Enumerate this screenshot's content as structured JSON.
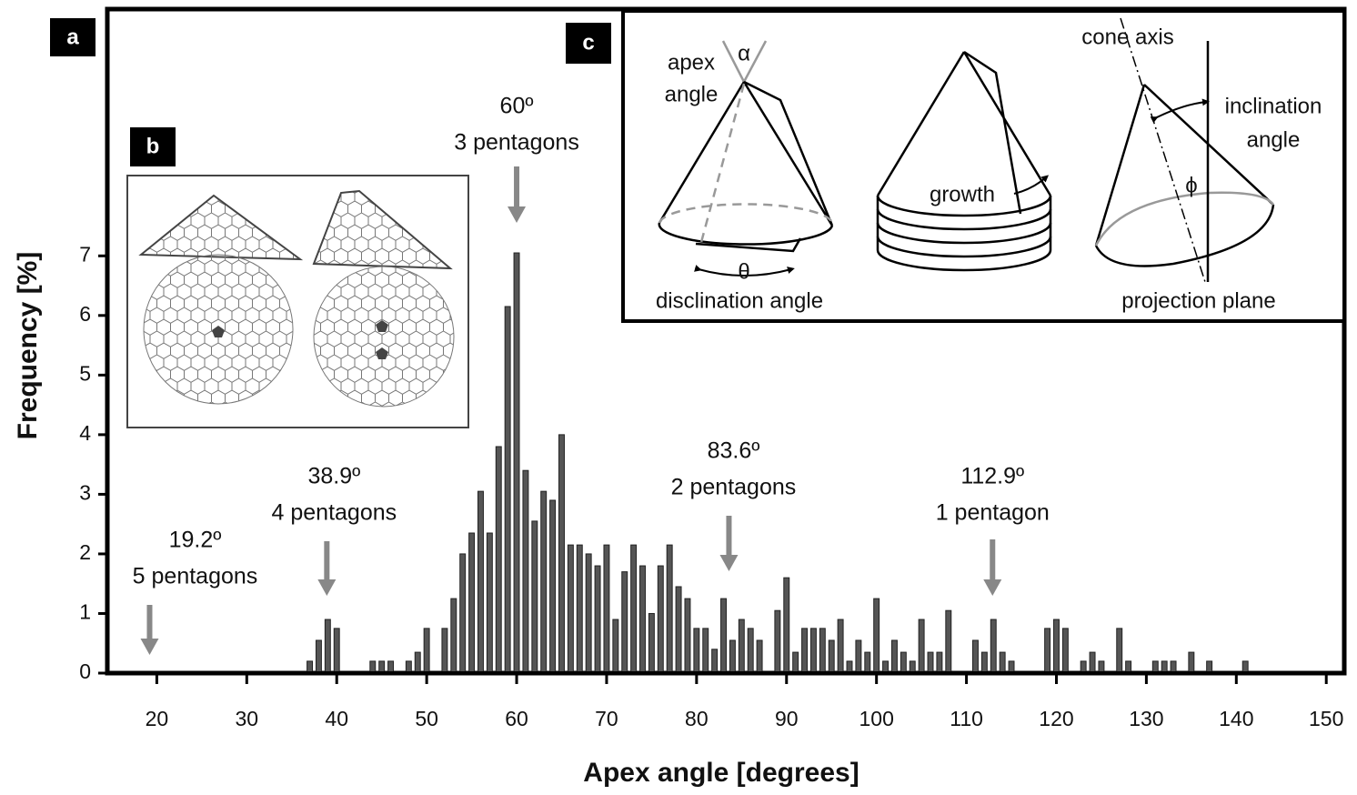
{
  "chart_data": {
    "type": "bar",
    "x_label": "Apex angle [degrees]",
    "y_label": "Frequency [%]",
    "x": [
      37,
      38,
      39,
      40,
      41,
      42,
      43,
      44,
      45,
      46,
      47,
      48,
      49,
      50,
      51,
      52,
      53,
      54,
      55,
      56,
      57,
      58,
      59,
      60,
      61,
      62,
      63,
      64,
      65,
      66,
      67,
      68,
      69,
      70,
      71,
      72,
      73,
      74,
      75,
      76,
      77,
      78,
      79,
      80,
      81,
      82,
      83,
      84,
      85,
      86,
      87,
      88,
      89,
      90,
      91,
      92,
      93,
      94,
      95,
      96,
      97,
      98,
      99,
      100,
      101,
      102,
      103,
      104,
      105,
      106,
      107,
      108,
      109,
      110,
      111,
      112,
      113,
      114,
      115,
      116,
      117,
      118,
      119,
      120,
      121,
      122,
      123,
      124,
      125,
      126,
      127,
      128,
      129,
      130,
      131,
      132,
      133,
      134,
      135,
      136,
      137,
      138,
      139,
      140,
      141
    ],
    "values": [
      0.2,
      0.55,
      0.9,
      0.75,
      0,
      0,
      0,
      0.2,
      0.2,
      0.2,
      0,
      0.2,
      0.35,
      0.75,
      0,
      0.75,
      1.25,
      2.0,
      2.35,
      3.05,
      2.35,
      3.8,
      6.15,
      7.05,
      3.4,
      2.55,
      3.05,
      2.9,
      4.0,
      2.15,
      2.15,
      2.0,
      1.8,
      2.15,
      0.9,
      1.7,
      2.15,
      1.8,
      1.0,
      1.8,
      2.15,
      1.45,
      1.25,
      0.75,
      0.75,
      0.4,
      1.25,
      0.55,
      0.9,
      0.75,
      0.55,
      0,
      1.05,
      1.6,
      0.35,
      0.75,
      0.75,
      0.75,
      0.55,
      0.9,
      0.2,
      0.55,
      0.35,
      1.25,
      0.2,
      0.55,
      0.35,
      0.2,
      0.9,
      0.35,
      0.35,
      1.05,
      0,
      0,
      0.55,
      0.35,
      0.9,
      0.35,
      0.2,
      0,
      0,
      0,
      0.75,
      0.9,
      0.75,
      0,
      0.2,
      0.35,
      0.2,
      0,
      0.75,
      0.2,
      0,
      0,
      0.2,
      0.2,
      0.2,
      0,
      0.35,
      0,
      0.2,
      0,
      0,
      0,
      0.2
    ],
    "color": "#555555",
    "xlim": [
      14.5,
      152
    ],
    "ylim": [
      0,
      11.14
    ],
    "xticks": [
      20,
      30,
      40,
      50,
      60,
      70,
      80,
      90,
      100,
      110,
      120,
      130,
      140,
      150
    ],
    "yticks": [
      0,
      1,
      2,
      3,
      4,
      5,
      6,
      7
    ],
    "annotations": [
      {
        "x": 19.2,
        "label": "19.2º",
        "note": "5 pentagons"
      },
      {
        "x": 38.9,
        "label": "38.9º",
        "note": "4 pentagons"
      },
      {
        "x": 60,
        "label": "60º",
        "note": "3 pentagons"
      },
      {
        "x": 83.6,
        "label": "83.6º",
        "note": "2 pentagons"
      },
      {
        "x": 112.9,
        "label": "112.9º",
        "note": "1 pentagon"
      }
    ]
  },
  "panels": {
    "a": "a",
    "b": "b",
    "c": "c"
  },
  "inset_c": {
    "apex_angle": [
      "apex",
      "angle"
    ],
    "alpha": "α",
    "theta": "θ",
    "disclination": "disclination angle",
    "growth": "growth",
    "cone_axis": "cone axis",
    "inclination_angle": [
      "inclination",
      "angle"
    ],
    "phi": "ϕ",
    "projection": "projection plane"
  }
}
